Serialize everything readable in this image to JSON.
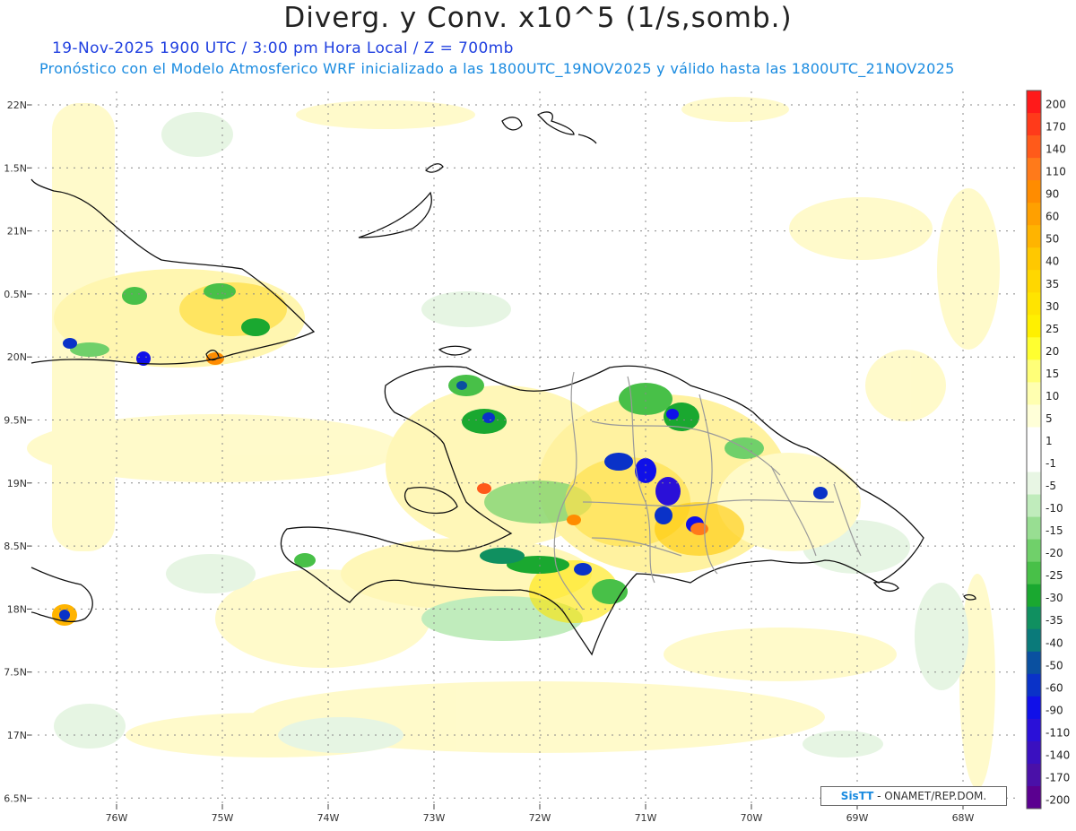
{
  "title": "Diverg. y Conv. x10^5 (1/s,somb.)",
  "subtitle": "19-Nov-2025  1900 UTC / 3:00 pm Hora Local / Z = 700mb",
  "subtitle2": "Pronóstico con el Modelo Atmosferico WRF inicializado a las 1800UTC_19NOV2025 y válido hasta las  1800UTC_21NOV2025",
  "credit": {
    "logo": "SisTT",
    "text": " - ONAMET/REP.DOM."
  },
  "lat_labels": [
    "22N",
    "1.5N",
    "21N",
    "0.5N",
    "20N",
    "9.5N",
    "19N",
    "8.5N",
    "18N",
    "7.5N",
    "17N",
    "6.5N"
  ],
  "lon_labels": [
    "76W",
    "75W",
    "74W",
    "73W",
    "72W",
    "71W",
    "70W",
    "69W",
    "68W"
  ],
  "colorbar": {
    "labels": [
      "200",
      "170",
      "140",
      "110",
      "90",
      "60",
      "50",
      "40",
      "35",
      "30",
      "25",
      "20",
      "15",
      "10",
      "5",
      "1",
      "-1",
      "-5",
      "-10",
      "-15",
      "-20",
      "-25",
      "-30",
      "-35",
      "-40",
      "-50",
      "-60",
      "-90",
      "-110",
      "-140",
      "-170",
      "-200"
    ],
    "colors": [
      "#ff1a1a",
      "#ff3a1a",
      "#ff5a1a",
      "#ff7a1a",
      "#ff8c00",
      "#ffa000",
      "#ffb400",
      "#ffc800",
      "#ffd700",
      "#ffe400",
      "#fff000",
      "#ffff30",
      "#ffff78",
      "#ffffb0",
      "#ffffd8",
      "#ffffff",
      "#ffffff",
      "#e8f6e4",
      "#c0ecbc",
      "#98de92",
      "#70d06a",
      "#48c048",
      "#1aa830",
      "#109060",
      "#0a7a7a",
      "#0a50a0",
      "#0a32c8",
      "#1010e8",
      "#2a10d8",
      "#3a10c0",
      "#4a10a8",
      "#5a0090"
    ]
  }
}
